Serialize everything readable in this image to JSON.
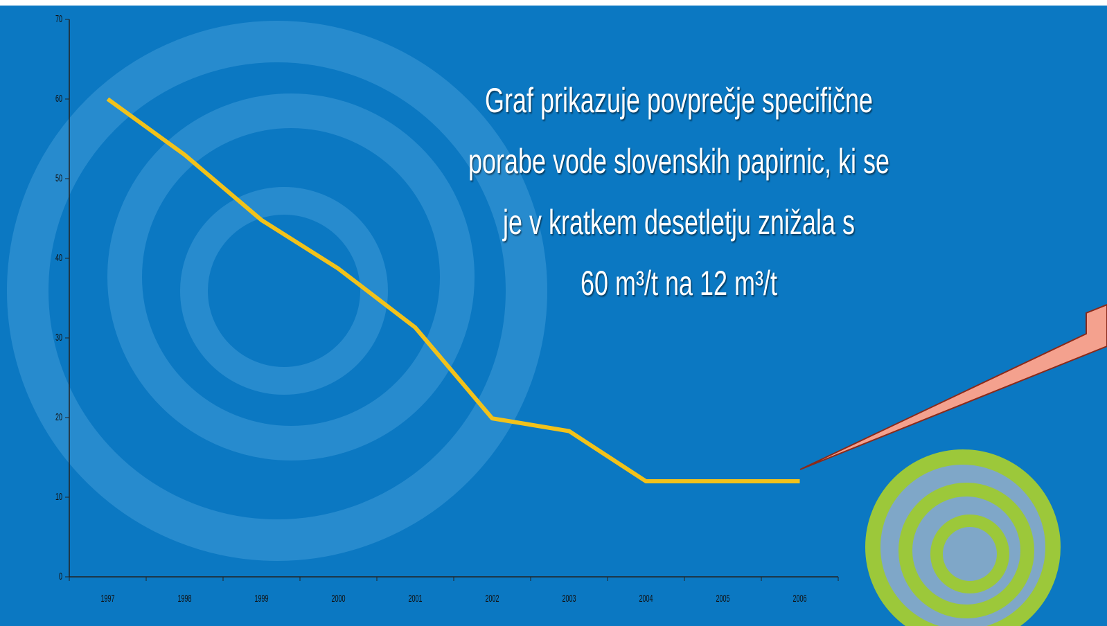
{
  "chart_data": {
    "type": "line",
    "annotation": [
      "Graf prikazuje povprečje specifične",
      "porabe vode slovenskih papirnic, ki se",
      "je v kratkem desetletju znižala s",
      "60 m³/t na 12 m³/t"
    ],
    "categories": [
      "1997",
      "1998",
      "1999",
      "2000",
      "2001",
      "2002",
      "2003",
      "2004",
      "2005",
      "2006"
    ],
    "values": [
      60,
      53,
      44.8,
      38.7,
      31.3,
      19.9,
      18.3,
      12,
      12,
      12
    ],
    "color": "#f2c21a",
    "ylim": [
      0,
      70
    ],
    "yticks": [
      0,
      10,
      20,
      30,
      40,
      50,
      60,
      70
    ],
    "grid": false
  }
}
